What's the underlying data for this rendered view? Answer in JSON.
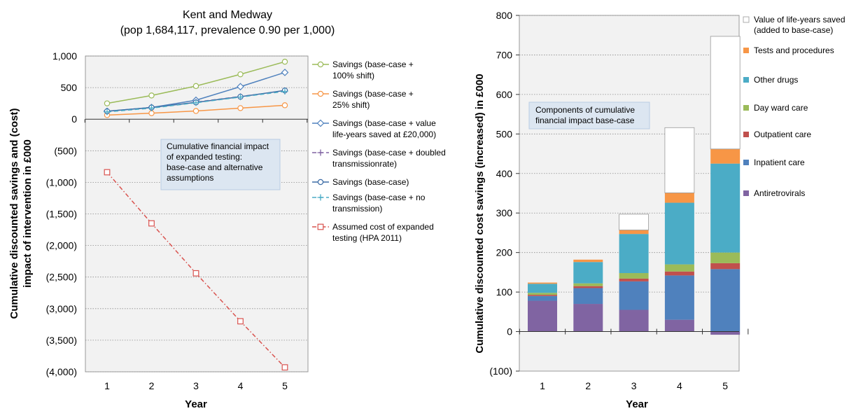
{
  "chart_data": [
    {
      "type": "line",
      "title": "Kent and Medway",
      "subtitle": "(pop 1,684,117, prevalence 0.90 per 1,000)",
      "xlabel": "Year",
      "ylabel_line1": "Cumulative discounted savings and (cost)",
      "ylabel_line2": "impact of intervention in £000",
      "x": [
        1,
        2,
        3,
        4,
        5
      ],
      "ylim": [
        -4000,
        1000
      ],
      "yticks": [
        1000,
        500,
        0,
        -500,
        -1000,
        -1500,
        -2000,
        -2500,
        -3000,
        -3500,
        -4000
      ],
      "ytick_labels": [
        "1,000",
        "500",
        "0",
        "(500)",
        "(1,000)",
        "(1,500)",
        "(2,000)",
        "(2,500)",
        "(3,000)",
        "(3,500)",
        "(4,000)"
      ],
      "xtick_labels": [
        "1",
        "2",
        "3",
        "4",
        "5"
      ],
      "grid": true,
      "legend_placement": "right",
      "annotation": [
        "Cumulative financial impact",
        "of expanded testing:",
        "base-case and alternative",
        "assumptions"
      ],
      "series": [
        {
          "name": "Savings (base-case + 100% shift)",
          "legend_lines": [
            "Savings (base-case +",
            "100% shift)"
          ],
          "color": "#9bbb59",
          "marker": "circle",
          "dash": "solid",
          "values": [
            250,
            375,
            525,
            710,
            910
          ]
        },
        {
          "name": "Savings (base-case + 25% shift)",
          "legend_lines": [
            "Savings (base-case +",
            "25% shift)"
          ],
          "color": "#f79646",
          "marker": "circle",
          "dash": "solid",
          "values": [
            65,
            95,
            130,
            175,
            220
          ]
        },
        {
          "name": "Savings (base-case + value life-years saved at £20,000)",
          "legend_lines": [
            "Savings (base-case + value",
            "life-years saved at £20,000)"
          ],
          "color": "#4f81bd",
          "marker": "diamond",
          "dash": "solid",
          "values": [
            125,
            185,
            300,
            515,
            740
          ]
        },
        {
          "name": "Savings (base-case + doubled transmissionrate)",
          "legend_lines": [
            "Savings (base-case + doubled",
            "transmissionrate)"
          ],
          "color": "#8064a2",
          "marker": "plus",
          "dash": "dash",
          "values": [
            120,
            180,
            270,
            360,
            445
          ]
        },
        {
          "name": "Savings (base-case)",
          "legend_lines": [
            "Savings (base-case)"
          ],
          "color": "#3b6ba5",
          "marker": "circle",
          "dash": "solid",
          "values": [
            125,
            185,
            265,
            355,
            455
          ]
        },
        {
          "name": "Savings (base-case + no transmission)",
          "legend_lines": [
            "Savings (base-case + no",
            "transmission)"
          ],
          "color": "#4bacc6",
          "marker": "plus",
          "dash": "dash",
          "values": [
            115,
            175,
            260,
            350,
            440
          ]
        },
        {
          "name": "Assumed cost of expanded testing (HPA 2011)",
          "legend_lines": [
            "Assumed cost of expanded",
            "testing (HPA 2011)"
          ],
          "color": "#d9534f",
          "marker": "square",
          "dash": "dashdot",
          "values": [
            -840,
            -1650,
            -2440,
            -3200,
            -3930
          ]
        }
      ]
    },
    {
      "type": "bar",
      "stacked": true,
      "xlabel": "Year",
      "ylabel": "Cumulative discounted cost savings (increased) in £000",
      "categories": [
        "1",
        "2",
        "3",
        "4",
        "5"
      ],
      "ylim": [
        -100,
        800
      ],
      "yticks": [
        800,
        700,
        600,
        500,
        400,
        300,
        200,
        100,
        0,
        -100
      ],
      "ytick_labels": [
        "800",
        "700",
        "600",
        "500",
        "400",
        "300",
        "200",
        "100",
        "0",
        "(100)"
      ],
      "grid": true,
      "legend_placement": "right",
      "annotation": [
        "Components of cumulative",
        "financial impact base-case"
      ],
      "legend_order": [
        6,
        5,
        4,
        3,
        2,
        1,
        0
      ],
      "series": [
        {
          "name": "Antiretrovirals",
          "legend_lines": [
            "Antiretrovirals"
          ],
          "color": "#8064a2",
          "values": [
            78,
            70,
            55,
            30,
            -8
          ]
        },
        {
          "name": "Inpatient care",
          "legend_lines": [
            "Inpatient care"
          ],
          "color": "#4f81bd",
          "values": [
            12,
            40,
            72,
            112,
            158
          ]
        },
        {
          "name": "Outpatient care",
          "legend_lines": [
            "Outpatient care"
          ],
          "color": "#c0504d",
          "values": [
            3,
            5,
            7,
            10,
            15
          ]
        },
        {
          "name": "Day ward care",
          "legend_lines": [
            "Day ward care"
          ],
          "color": "#9bbb59",
          "values": [
            5,
            7,
            14,
            18,
            27
          ]
        },
        {
          "name": "Other drugs",
          "legend_lines": [
            "Other drugs"
          ],
          "color": "#4bacc6",
          "values": [
            23,
            54,
            99,
            156,
            225
          ]
        },
        {
          "name": "Tests and procedures",
          "legend_lines": [
            "Tests and procedures"
          ],
          "color": "#f79646",
          "values": [
            3,
            6,
            10,
            25,
            37
          ]
        },
        {
          "name": "Value of life-years saved (added to base-case)",
          "legend_lines": [
            "Value of life-years saved",
            "(added to base-case)"
          ],
          "color": "#ffffff",
          "values": [
            0,
            0,
            40,
            165,
            285
          ]
        }
      ]
    }
  ]
}
